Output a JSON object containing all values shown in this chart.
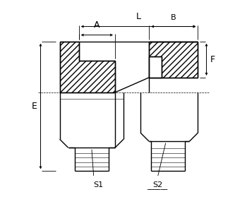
{
  "bg_color": "#ffffff",
  "line_color": "#000000",
  "hatch_pattern": "////",
  "labels": {
    "L": "L",
    "A": "A",
    "B": "B",
    "E": "E",
    "F": "F",
    "S1": "S1",
    "S2": "S2"
  },
  "figsize": [
    3.5,
    2.89
  ],
  "dpi": 100,
  "xlim": [
    0,
    100
  ],
  "ylim": [
    0,
    95
  ]
}
